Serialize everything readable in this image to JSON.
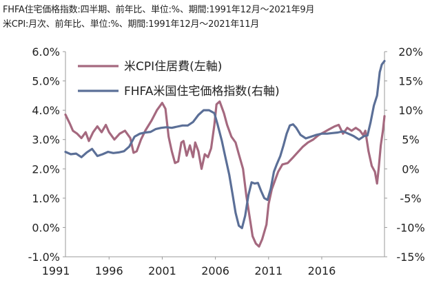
{
  "notes": [
    "FHFA住宅価格指数:四半期、前年比、単位:%、期間:1991年12月～2021年9月",
    "米CPI:月次、前年比、単位:%、期間:1991年12月～2021年11月"
  ],
  "chart_data": {
    "type": "line",
    "title": "",
    "xlabel": "",
    "x_ticks": [
      "1991",
      "1996",
      "2001",
      "2006",
      "2011",
      "2016"
    ],
    "x_range": [
      1991.9,
      2021.9
    ],
    "y_left": {
      "ylim": [
        -1.0,
        6.0
      ],
      "ticks": [
        "-1.0%",
        "0.0%",
        "1.0%",
        "2.0%",
        "3.0%",
        "4.0%",
        "5.0%",
        "6.0%"
      ],
      "ylabel": ""
    },
    "y_right": {
      "ylim": [
        -15,
        20
      ],
      "ticks": [
        "-15%",
        "-10%",
        "-5%",
        "0%",
        "5%",
        "10%",
        "15%",
        "20%"
      ],
      "ylabel": ""
    },
    "grid": false,
    "legend_position": "top-left",
    "series": [
      {
        "name": "米CPI住居費(左軸)",
        "axis": "left",
        "color": "#a5697f",
        "points": [
          [
            1991.9,
            3.85
          ],
          [
            1992.3,
            3.55
          ],
          [
            1992.6,
            3.3
          ],
          [
            1993.0,
            3.2
          ],
          [
            1993.4,
            3.05
          ],
          [
            1993.8,
            3.25
          ],
          [
            1994.1,
            2.95
          ],
          [
            1994.5,
            3.25
          ],
          [
            1994.9,
            3.45
          ],
          [
            1995.3,
            3.25
          ],
          [
            1995.7,
            3.5
          ],
          [
            1996.0,
            3.25
          ],
          [
            1996.5,
            3.0
          ],
          [
            1997.0,
            3.2
          ],
          [
            1997.5,
            3.3
          ],
          [
            1998.0,
            3.05
          ],
          [
            1998.3,
            2.55
          ],
          [
            1998.6,
            2.6
          ],
          [
            1999.0,
            3.0
          ],
          [
            1999.4,
            3.3
          ],
          [
            2000.0,
            3.65
          ],
          [
            2000.5,
            4.0
          ],
          [
            2001.0,
            4.25
          ],
          [
            2001.3,
            4.05
          ],
          [
            2001.6,
            3.1
          ],
          [
            2001.9,
            2.6
          ],
          [
            2002.2,
            2.2
          ],
          [
            2002.5,
            2.25
          ],
          [
            2002.8,
            2.9
          ],
          [
            2003.0,
            2.95
          ],
          [
            2003.3,
            2.45
          ],
          [
            2003.6,
            2.8
          ],
          [
            2003.9,
            2.4
          ],
          [
            2004.1,
            2.9
          ],
          [
            2004.4,
            2.6
          ],
          [
            2004.7,
            2.0
          ],
          [
            2005.0,
            2.5
          ],
          [
            2005.3,
            2.4
          ],
          [
            2005.6,
            2.7
          ],
          [
            2005.9,
            3.5
          ],
          [
            2006.1,
            4.2
          ],
          [
            2006.4,
            4.3
          ],
          [
            2006.8,
            3.9
          ],
          [
            2007.1,
            3.5
          ],
          [
            2007.5,
            3.1
          ],
          [
            2007.9,
            2.9
          ],
          [
            2008.2,
            2.5
          ],
          [
            2008.6,
            2.0
          ],
          [
            2008.9,
            1.1
          ],
          [
            2009.2,
            0.4
          ],
          [
            2009.5,
            -0.3
          ],
          [
            2009.8,
            -0.55
          ],
          [
            2010.1,
            -0.65
          ],
          [
            2010.4,
            -0.4
          ],
          [
            2010.8,
            0.1
          ],
          [
            2011.0,
            0.8
          ],
          [
            2011.3,
            1.3
          ],
          [
            2011.6,
            1.6
          ],
          [
            2011.9,
            1.9
          ],
          [
            2012.3,
            2.15
          ],
          [
            2012.8,
            2.2
          ],
          [
            2013.2,
            2.35
          ],
          [
            2013.7,
            2.55
          ],
          [
            2014.2,
            2.75
          ],
          [
            2014.7,
            2.9
          ],
          [
            2015.2,
            3.0
          ],
          [
            2015.7,
            3.15
          ],
          [
            2016.2,
            3.25
          ],
          [
            2016.7,
            3.35
          ],
          [
            2017.2,
            3.45
          ],
          [
            2017.6,
            3.5
          ],
          [
            2018.0,
            3.2
          ],
          [
            2018.4,
            3.4
          ],
          [
            2018.8,
            3.3
          ],
          [
            2019.2,
            3.4
          ],
          [
            2019.6,
            3.3
          ],
          [
            2019.9,
            3.15
          ],
          [
            2020.1,
            3.3
          ],
          [
            2020.4,
            2.6
          ],
          [
            2020.7,
            2.1
          ],
          [
            2021.0,
            1.9
          ],
          [
            2021.2,
            1.5
          ],
          [
            2021.35,
            2.0
          ],
          [
            2021.55,
            2.8
          ],
          [
            2021.75,
            3.3
          ],
          [
            2021.9,
            3.8
          ]
        ]
      },
      {
        "name": "FHFA米国住宅価格指数(右軸)",
        "axis": "right",
        "color": "#5b6f97",
        "points": [
          [
            1991.9,
            2.9
          ],
          [
            1992.4,
            2.5
          ],
          [
            1992.9,
            2.6
          ],
          [
            1993.4,
            2.0
          ],
          [
            1993.9,
            2.8
          ],
          [
            1994.4,
            3.4
          ],
          [
            1994.9,
            2.2
          ],
          [
            1995.4,
            2.5
          ],
          [
            1995.9,
            2.9
          ],
          [
            1996.4,
            2.7
          ],
          [
            1996.9,
            2.8
          ],
          [
            1997.4,
            3.0
          ],
          [
            1997.9,
            3.8
          ],
          [
            1998.4,
            5.5
          ],
          [
            1998.9,
            6.0
          ],
          [
            1999.4,
            6.2
          ],
          [
            1999.9,
            6.3
          ],
          [
            2000.4,
            6.8
          ],
          [
            2000.9,
            7.0
          ],
          [
            2001.4,
            7.1
          ],
          [
            2001.9,
            7.0
          ],
          [
            2002.4,
            7.2
          ],
          [
            2002.9,
            7.4
          ],
          [
            2003.4,
            7.4
          ],
          [
            2003.9,
            8.0
          ],
          [
            2004.4,
            9.2
          ],
          [
            2004.9,
            10.0
          ],
          [
            2005.4,
            10.0
          ],
          [
            2005.9,
            9.5
          ],
          [
            2006.2,
            7.6
          ],
          [
            2006.6,
            4.8
          ],
          [
            2006.9,
            2.3
          ],
          [
            2007.3,
            -1.0
          ],
          [
            2007.6,
            -4.2
          ],
          [
            2007.9,
            -7.5
          ],
          [
            2008.2,
            -9.7
          ],
          [
            2008.5,
            -10.1
          ],
          [
            2008.8,
            -8.0
          ],
          [
            2009.1,
            -4.5
          ],
          [
            2009.4,
            -2.3
          ],
          [
            2009.7,
            -2.5
          ],
          [
            2010.0,
            -2.4
          ],
          [
            2010.3,
            -3.8
          ],
          [
            2010.6,
            -5.0
          ],
          [
            2010.9,
            -5.3
          ],
          [
            2011.2,
            -3.4
          ],
          [
            2011.5,
            -0.5
          ],
          [
            2011.8,
            0.9
          ],
          [
            2012.1,
            2.2
          ],
          [
            2012.4,
            4.0
          ],
          [
            2012.7,
            6.0
          ],
          [
            2013.0,
            7.4
          ],
          [
            2013.3,
            7.6
          ],
          [
            2013.6,
            7.0
          ],
          [
            2014.0,
            5.8
          ],
          [
            2014.5,
            5.2
          ],
          [
            2015.0,
            5.5
          ],
          [
            2015.5,
            5.8
          ],
          [
            2016.0,
            6.0
          ],
          [
            2016.5,
            6.0
          ],
          [
            2017.0,
            6.1
          ],
          [
            2017.5,
            6.2
          ],
          [
            2018.0,
            6.4
          ],
          [
            2018.5,
            6.0
          ],
          [
            2019.0,
            5.6
          ],
          [
            2019.5,
            5.0
          ],
          [
            2020.0,
            5.6
          ],
          [
            2020.3,
            5.7
          ],
          [
            2020.6,
            8.0
          ],
          [
            2020.9,
            10.8
          ],
          [
            2021.2,
            12.5
          ],
          [
            2021.45,
            16.5
          ],
          [
            2021.65,
            17.8
          ],
          [
            2021.9,
            18.4
          ]
        ]
      }
    ]
  }
}
